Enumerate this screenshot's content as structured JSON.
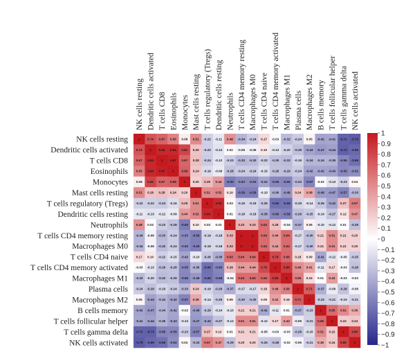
{
  "chart_data": {
    "type": "heatmap",
    "title": "",
    "xlabel": "",
    "ylabel": "",
    "labels": [
      "NK cells resting",
      "Dendritic cells activated",
      "T cells CD8",
      "Eosinophils",
      "Monocytes",
      "Mast cells resting",
      "T cells regulatory (Tregs)",
      "Dendritic cells resting",
      "Neutrophils",
      "T cells CD4 memory resting",
      "Macrophages M0",
      "T cells CD4 naive",
      "T cells CD4 memory activated",
      "Macrophages M1",
      "Plasma cells",
      "Macrophages M2",
      "B cells memory",
      "T cells follicular helper",
      "T cells gamma delta",
      "NK cells activated"
    ],
    "matrix": [
      [
        1,
        0.74,
        0.67,
        0.55,
        0.08,
        0.51,
        -0.22,
        -0.11,
        0.48,
        -0.34,
        -0.24,
        0.17,
        -0.03,
        -0.32,
        -0.24,
        0.05,
        -0.42,
        -0.41,
        -0.72,
        -0.75
      ],
      [
        0.74,
        1,
        0.94,
        0.94,
        0.81,
        0.26,
        -0.22,
        -0.13,
        0.02,
        -0.06,
        -0.06,
        0.1,
        -0.13,
        -0.2,
        -0.29,
        -0.43,
        -0.47,
        -0.44,
        -0.73,
        -0.69
      ],
      [
        0.67,
        0.94,
        1,
        0.97,
        0.67,
        0.28,
        -0.24,
        -0.12,
        -0.23,
        -0.33,
        -0.32,
        -0.22,
        -0.29,
        -0.32,
        -0.19,
        -0.34,
        -0.34,
        -0.35,
        -0.56,
        -0.66
      ],
      [
        0.55,
        0.94,
        0.97,
        1,
        0.69,
        0.24,
        -0.16,
        -0.09,
        -0.28,
        -0.24,
        -0.24,
        -0.15,
        -0.28,
        -0.29,
        -0.24,
        -0.42,
        -0.42,
        -0.43,
        -0.55,
        -0.52
      ],
      [
        0.08,
        0.81,
        0.67,
        0.69,
        1,
        0.2,
        0.29,
        0.44,
        -0.6,
        -0.53,
        -0.53,
        -0.42,
        -0.55,
        -0.56,
        -0.33,
        -0.57,
        -0.02,
        -0.13,
        -0.23,
        0.04
      ],
      [
        0.51,
        0.26,
        0.28,
        0.24,
        0.2,
        1,
        0.51,
        0.52,
        0.1,
        -0.59,
        -0.59,
        -0.1,
        -0.36,
        -0.48,
        0.24,
        0.38,
        -0.46,
        -0.47,
        -0.57,
        -0.33
      ],
      [
        -0.22,
        -0.22,
        -0.24,
        -0.16,
        0.29,
        0.51,
        1,
        0.93,
        0.03,
        -0.19,
        -0.19,
        -0.26,
        -0.66,
        -0.65,
        -0.19,
        -0.14,
        -0.26,
        -0.42,
        0.27,
        0.57
      ],
      [
        -0.11,
        -0.13,
        -0.12,
        -0.09,
        0.44,
        0.52,
        0.93,
        1,
        0.01,
        -0.18,
        -0.18,
        -0.38,
        -0.56,
        -0.58,
        -0.29,
        -0.25,
        -0.14,
        -0.27,
        0.12,
        0.47
      ],
      [
        0.48,
        0.02,
        -0.23,
        -0.28,
        -0.6,
        0.1,
        0.03,
        0.01,
        1,
        0.33,
        0.33,
        0.63,
        0.28,
        -0.04,
        -0.37,
        0.06,
        -0.1,
        -0.12,
        0.01,
        -0.29
      ],
      [
        -0.34,
        -0.06,
        -0.33,
        -0.24,
        -0.53,
        -0.59,
        -0.19,
        -0.18,
        0.33,
        1,
        1,
        0.64,
        0.44,
        0.64,
        -0.17,
        -0.3,
        0.21,
        0.51,
        0.21,
        0.2
      ],
      [
        -0.34,
        -0.06,
        -0.32,
        -0.24,
        -0.53,
        -0.59,
        -0.19,
        -0.18,
        0.33,
        1,
        1,
        0.64,
        0.44,
        0.64,
        -0.17,
        -0.3,
        0.21,
        0.51,
        0.21,
        0.2
      ],
      [
        0.17,
        0.1,
        -0.22,
        -0.15,
        -0.42,
        -0.1,
        -0.26,
        -0.38,
        0.63,
        0.64,
        0.64,
        1,
        0.79,
        0.66,
        0.18,
        0.09,
        -0.41,
        -0.12,
        -0.05,
        -0.25
      ],
      [
        -0.03,
        -0.13,
        -0.29,
        -0.28,
        -0.55,
        -0.36,
        -0.66,
        -0.56,
        0.28,
        0.44,
        0.44,
        0.79,
        1,
        0.85,
        0.49,
        0.41,
        -0.11,
        0.17,
        -0.03,
        -0.28
      ],
      [
        -0.32,
        -0.2,
        -0.32,
        -0.29,
        -0.56,
        -0.48,
        -0.65,
        -0.58,
        -0.04,
        0.64,
        0.64,
        0.66,
        0.85,
        1,
        0.56,
        0.16,
        0.01,
        0.43,
        -0.03,
        -0.02
      ],
      [
        -0.24,
        -0.29,
        -0.19,
        -0.24,
        -0.33,
        0.24,
        -0.19,
        -0.29,
        -0.37,
        -0.17,
        -0.17,
        0.18,
        0.49,
        0.56,
        1,
        0.71,
        -0.37,
        -0.09,
        -0.28,
        -0.06
      ],
      [
        0.05,
        -0.43,
        -0.34,
        -0.42,
        -0.57,
        0.38,
        -0.14,
        -0.25,
        0.06,
        -0.3,
        -0.3,
        0.09,
        0.41,
        0.16,
        0.71,
        1,
        -0.23,
        -0.21,
        -0.15,
        -0.21
      ],
      [
        -0.42,
        -0.47,
        -0.34,
        -0.42,
        -0.02,
        -0.46,
        -0.26,
        -0.14,
        -0.1,
        0.21,
        0.21,
        -0.41,
        -0.11,
        0.01,
        -0.37,
        -0.23,
        1,
        0.65,
        0.51,
        0.36
      ],
      [
        -0.41,
        -0.44,
        -0.35,
        -0.43,
        -0.13,
        -0.47,
        -0.42,
        -0.27,
        -0.12,
        0.51,
        0.51,
        -0.12,
        0.17,
        0.43,
        -0.09,
        -0.21,
        0.65,
        1,
        0.22,
        0.24
      ],
      [
        -0.72,
        -0.73,
        -0.56,
        -0.55,
        -0.23,
        -0.57,
        0.27,
        0.12,
        0.01,
        0.21,
        0.21,
        -0.05,
        -0.03,
        -0.03,
        -0.28,
        -0.15,
        0.51,
        0.22,
        1,
        0.8
      ],
      [
        -0.75,
        -0.69,
        -0.66,
        -0.52,
        0.04,
        -0.33,
        0.57,
        0.47,
        -0.29,
        0.2,
        0.2,
        -0.25,
        -0.28,
        -0.02,
        -0.06,
        -0.21,
        0.36,
        0.24,
        0.8,
        1
      ]
    ],
    "value_range": [
      -1,
      1
    ],
    "colorbar": {
      "ticks": [
        1,
        0.9,
        0.8,
        0.7,
        0.6,
        0.5,
        0.4,
        0.3,
        0.2,
        0.1,
        0,
        -0.1,
        -0.2,
        -0.3,
        -0.4,
        -0.5,
        -0.6,
        -0.7,
        -0.8,
        -0.9,
        -1
      ],
      "tick_labels": [
        "1",
        "0.9",
        "0.8",
        "0.7",
        "0.6",
        "0.5",
        "0.4",
        "0.3",
        "0.2",
        "0.1",
        "0",
        "−0.1",
        "−0.2",
        "−0.3",
        "−0.4",
        "−0.5",
        "−0.6",
        "−0.7",
        "−0.8",
        "−0.9",
        "−1"
      ],
      "placement": "right"
    },
    "colors": {
      "negative": "#27268a",
      "neutral": "#ffffff",
      "positive": "#c4191e"
    },
    "grid": false
  }
}
